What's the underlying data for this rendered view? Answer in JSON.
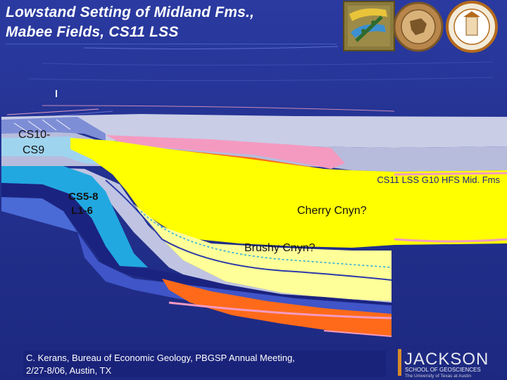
{
  "title": {
    "line1": "Lowstand Setting of Midland Fms.,",
    "line2": "Mabee Fields, CS11 LSS"
  },
  "labels": {
    "cs10": "CS10-",
    "cs9": "CS9",
    "cs11": "CS11 LSS G10 HFS Mid. Fms",
    "cs58": "CS5-8",
    "l16": "L1-6",
    "cherry": "Cherry Cnyn?",
    "brushy": "Brushy Cnyn?"
  },
  "credit": {
    "line1": "C. Kerans, Bureau of Economic Geology, PBGSP Annual Meeting,",
    "line2": "2/27-8/06, Austin, TX"
  },
  "logo": {
    "jackson": "JACKSON",
    "school": "SCHOOL OF GEOSCIENCES",
    "university": "The University of Texas at Austin"
  },
  "colors": {
    "background": "#23318f",
    "yellow": "#ffff00",
    "pale_yellow": "#ffff99",
    "pink": "#f49ac1",
    "orange": "#ff6a1a",
    "cyan": "#22a8e0",
    "navy": "#1b2380",
    "mid_blue": "#3f55c8",
    "grey_band": "#c9cde6"
  },
  "icons": [
    "bureau-map-logo-icon",
    "economic-geology-seal-icon",
    "ut-geological-sciences-seal-icon",
    "jackson-school-logo-icon"
  ]
}
